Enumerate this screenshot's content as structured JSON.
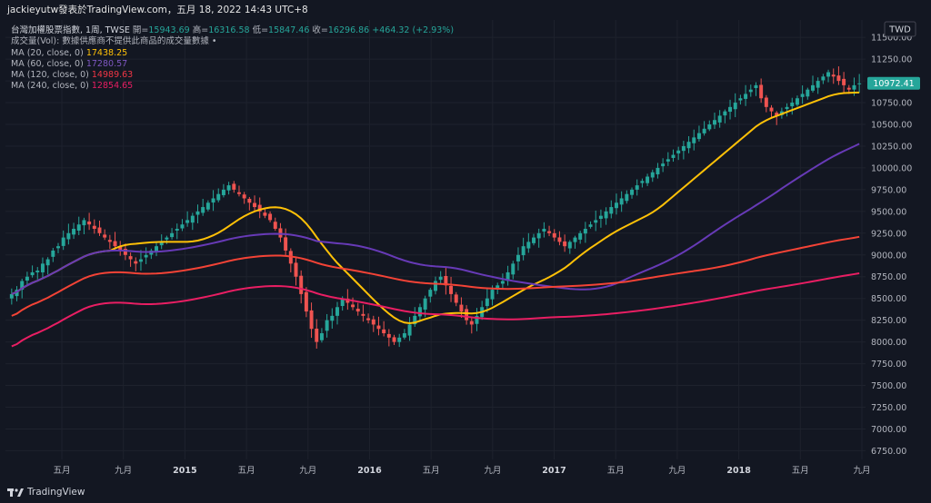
{
  "topbar": {
    "title": "jackieyutw發表於TradingView.com，五月 18, 2022 14:43 UTC+8"
  },
  "legend": {
    "symbol": "台灣加權股票指數, 1周, TWSE",
    "open_label": "開=",
    "open": "15943.69",
    "high_label": "高=",
    "high": "16316.58",
    "low_label": "低=",
    "low": "15847.46",
    "close_label": "收=",
    "close": "16296.86",
    "change": "+464.32 (+2.93%)",
    "volume_note": "成交量(Vol): 數據供應商不提供此商品的成交量數據 •",
    "ma": [
      {
        "label": "MA (20, close, 0)",
        "value": "17438.25",
        "color": "#ffc107"
      },
      {
        "label": "MA (60, close, 0)",
        "value": "17280.57",
        "color": "#673ab7"
      },
      {
        "label": "MA (120, close, 0)",
        "value": "14989.63",
        "color": "#f23645"
      },
      {
        "label": "MA (240, close, 0)",
        "value": "12854.65",
        "color": "#e91e63"
      }
    ]
  },
  "currency": "TWD",
  "price_tag": "10972.41",
  "footer": {
    "brand": "TradingView"
  },
  "colors": {
    "bg": "#131722",
    "up": "#26a69a",
    "down": "#ef5350",
    "ma20": "#ffc107",
    "ma60": "#673ab7",
    "ma120": "#f44336",
    "ma240": "#e91e63",
    "grid": "#1e222d"
  },
  "chart_data": {
    "type": "candlestick",
    "y_axis_ticks": [
      6750,
      7000,
      7250,
      7500,
      7750,
      8000,
      8250,
      8500,
      8750,
      9000,
      9250,
      9500,
      9750,
      10000,
      10250,
      10500,
      10750,
      11000,
      11250,
      11500
    ],
    "ylim": [
      6650,
      11700
    ],
    "x_axis_ticks": [
      "五月",
      "九月",
      "2015",
      "五月",
      "九月",
      "2016",
      "五月",
      "九月",
      "2017",
      "五月",
      "九月",
      "2018",
      "五月",
      "九月"
    ],
    "x_year_ticks": [
      "2015",
      "2016",
      "2017",
      "2018"
    ],
    "closes": [
      8550,
      8600,
      8700,
      8750,
      8800,
      8820,
      8900,
      8950,
      9050,
      9100,
      9200,
      9250,
      9300,
      9350,
      9400,
      9350,
      9300,
      9250,
      9200,
      9150,
      9100,
      9050,
      9000,
      8950,
      8900,
      8950,
      9000,
      9050,
      9100,
      9150,
      9200,
      9250,
      9300,
      9350,
      9400,
      9450,
      9500,
      9550,
      9600,
      9650,
      9700,
      9750,
      9800,
      9750,
      9700,
      9650,
      9600,
      9550,
      9500,
      9450,
      9400,
      9300,
      9200,
      9050,
      8900,
      8750,
      8550,
      8350,
      8150,
      8000,
      8100,
      8250,
      8300,
      8400,
      8500,
      8450,
      8400,
      8350,
      8300,
      8250,
      8200,
      8150,
      8100,
      8050,
      8000,
      8050,
      8100,
      8200,
      8300,
      8400,
      8500,
      8600,
      8700,
      8750,
      8650,
      8550,
      8450,
      8350,
      8250,
      8200,
      8300,
      8400,
      8500,
      8600,
      8650,
      8700,
      8800,
      8900,
      9000,
      9100,
      9150,
      9200,
      9250,
      9300,
      9250,
      9200,
      9150,
      9100,
      9150,
      9200,
      9250,
      9300,
      9350,
      9400,
      9450,
      9500,
      9550,
      9600,
      9650,
      9700,
      9750,
      9800,
      9850,
      9900,
      9950,
      10000,
      10050,
      10100,
      10150,
      10200,
      10250,
      10300,
      10350,
      10400,
      10450,
      10500,
      10550,
      10600,
      10650,
      10700,
      10750,
      10800,
      10850,
      10900,
      10950,
      10800,
      10700,
      10650,
      10600,
      10650,
      10700,
      10750,
      10800,
      10850,
      10900,
      10950,
      11000,
      11050,
      11100,
      11050,
      11000,
      10950,
      10900,
      10950,
      10972
    ],
    "last_price": 10972.41
  }
}
